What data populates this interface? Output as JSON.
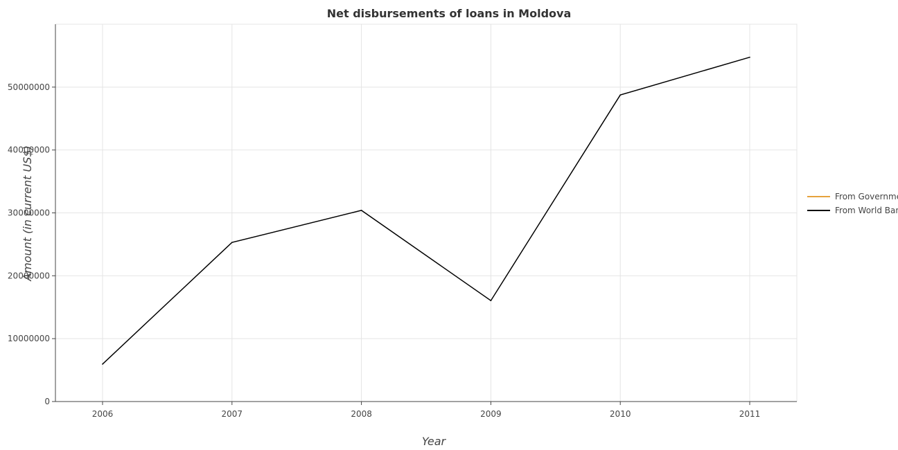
{
  "chart_data": {
    "type": "line",
    "title": "Net disbursements of loans in Moldova",
    "xlabel": "Year",
    "ylabel": "Amount (in current US$)",
    "categories": [
      "2006",
      "2007",
      "2008",
      "2009",
      "2010",
      "2011"
    ],
    "series": [
      {
        "name": "From Government",
        "color": "#e6a23c",
        "values": [
          0,
          0,
          0,
          0,
          0,
          0
        ]
      },
      {
        "name": "From World Bank",
        "color": "#000000",
        "values": [
          5950000,
          25300000,
          30400000,
          16050000,
          48750000,
          54750000
        ]
      }
    ],
    "ylim": [
      0,
      60000000
    ],
    "yticks": [
      0,
      10000000,
      20000000,
      30000000,
      40000000,
      50000000
    ],
    "ytick_labels": [
      "0",
      "10000000",
      "20000000",
      "30000000",
      "40000000",
      "50000000"
    ],
    "grid": true,
    "legend_position": "right"
  }
}
